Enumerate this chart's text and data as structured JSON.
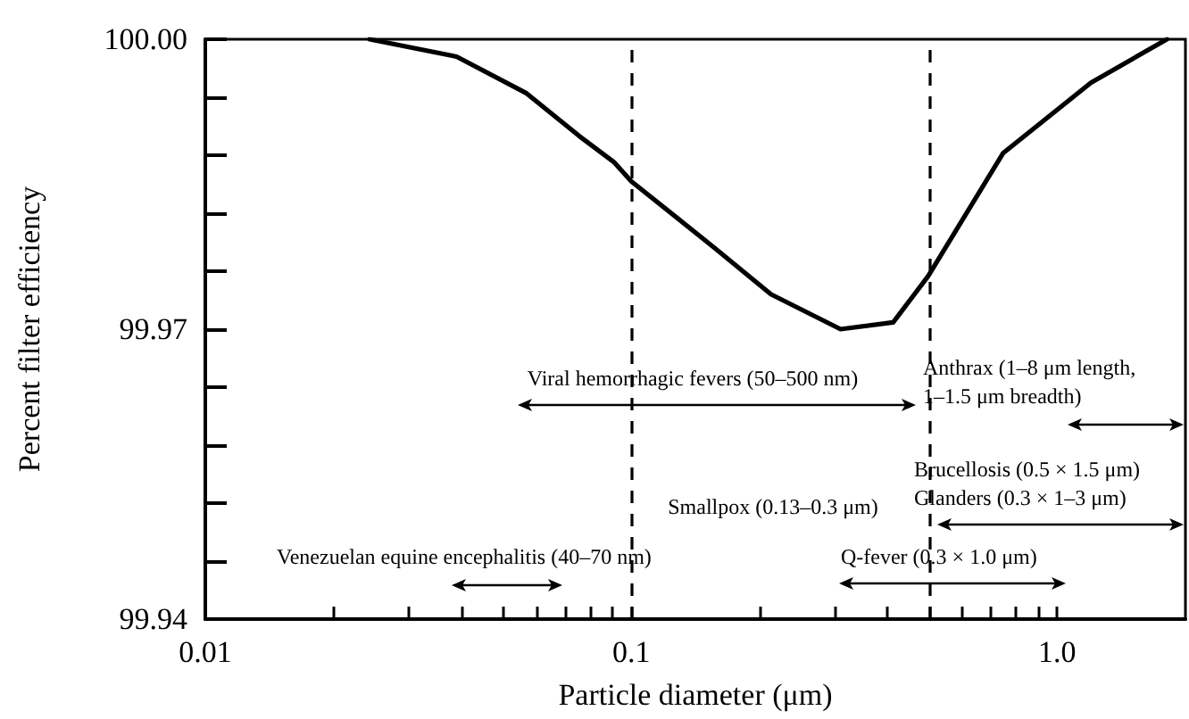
{
  "chart_data": {
    "type": "line",
    "xlabel": "Particle diameter (μm)",
    "ylabel": "Percent filter efficiency",
    "log": "x",
    "grid": false,
    "xlim": [
      0.01,
      2
    ],
    "ylim": [
      99.94,
      100
    ],
    "xticks": [
      0.01,
      {
        "value": 0.02,
        "label": null
      },
      {
        "value": 0.03,
        "label": null
      },
      {
        "value": 0.04,
        "label": null
      },
      {
        "value": 0.05,
        "label": null
      },
      {
        "value": 0.06,
        "label": null
      },
      {
        "value": 0.07,
        "label": null
      },
      {
        "value": 0.08,
        "label": null
      },
      {
        "value": 0.09,
        "label": null
      },
      0.1,
      {
        "value": 0.2,
        "label": null
      },
      {
        "value": 0.3,
        "label": null
      },
      {
        "value": 0.4,
        "label": null
      },
      {
        "value": 0.5,
        "label": null
      },
      {
        "value": 0.6,
        "label": null
      },
      {
        "value": 0.7,
        "label": null
      },
      {
        "value": 0.8,
        "label": null
      },
      {
        "value": 0.9,
        "label": null
      },
      {
        "value": 1,
        "label": "1.0"
      }
    ],
    "yticks": [
      99.94,
      {
        "value": 99.946,
        "label": null
      },
      {
        "value": 99.952,
        "label": null
      },
      {
        "value": 99.958,
        "label": null
      },
      {
        "value": 99.964,
        "label": null
      },
      99.97,
      {
        "value": 99.976,
        "label": null
      },
      {
        "value": 99.982,
        "label": null
      },
      {
        "value": 99.988,
        "label": null
      },
      {
        "value": 99.994,
        "label": null
      },
      {
        "value": 100,
        "label": "100.00"
      }
    ],
    "series": [
      {
        "color": "#000000",
        "x": [
          0.0243,
          0.0389,
          0.0568,
          0.0754,
          0.091,
          0.1,
          0.156,
          0.213,
          0.31,
          0.412,
          0.498,
          0.746,
          1.2,
          1.81
        ],
        "values": [
          100,
          99.9982,
          99.9944,
          99.99,
          99.9873,
          99.9853,
          99.9785,
          99.9736,
          99.97,
          99.9707,
          99.9755,
          99.9882,
          99.9955,
          100
        ]
      }
    ],
    "ref_lines": [
      {
        "axis": "x",
        "value": 0.1,
        "line_style": "dashed"
      },
      {
        "axis": "x",
        "value": 0.5,
        "line_style": "dashed"
      }
    ],
    "annotations": [
      "Viral hemorrhagic fevers (50–500 nm)",
      "Anthrax (1–8 μm length,\n1–1.5 μm breadth)",
      "Brucellosis (0.5 × 1.5 μm)\nGlanders (0.3 × 1–3 μm)",
      "Smallpox (0.13–0.3 μm)",
      "Q-fever (0.3 × 1.0 μm)",
      "Venezuelan equine encephalitis (40–70 nm)"
    ]
  }
}
